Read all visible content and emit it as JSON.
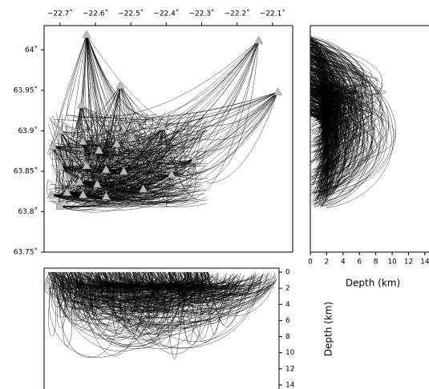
{
  "chart_data": [
    {
      "type": "scatter",
      "xlim": [
        -22.745,
        -22.043
      ],
      "ylim": [
        63.75,
        64.03
      ],
      "xticks": [
        {
          "value": -22.7,
          "label": "−22.7˚"
        },
        {
          "value": -22.6,
          "label": "−22.6˚"
        },
        {
          "value": -22.5,
          "label": "−22.5˚"
        },
        {
          "value": -22.4,
          "label": "−22.4˚"
        },
        {
          "value": -22.3,
          "label": "−22.3˚"
        },
        {
          "value": -22.2,
          "label": "−22.2˚"
        },
        {
          "value": -22.1,
          "label": "−22.1˚"
        }
      ],
      "yticks": [
        {
          "value": 63.75,
          "label": "63.75˚"
        },
        {
          "value": 63.8,
          "label": "63.8˚"
        },
        {
          "value": 63.85,
          "label": "63.85˚"
        },
        {
          "value": 63.9,
          "label": "63.9˚"
        },
        {
          "value": 63.95,
          "label": "63.95˚"
        },
        {
          "value": 64,
          "label": "64˚"
        }
      ],
      "color": "#bdbdbd",
      "x": [
        -22.625,
        -22.139,
        -22.085,
        -22.53,
        -22.64,
        -22.7,
        -22.41,
        -22.72,
        -22.635,
        -22.59,
        -22.54,
        -22.32,
        -22.385,
        -22.7,
        -22.625,
        -22.57,
        -22.52,
        -22.645,
        -22.595,
        -22.465,
        -22.725,
        -22.68,
        -22.635,
        -22.57,
        -22.7
      ],
      "y": [
        64.019,
        64.012,
        63.948,
        63.956,
        63.932,
        63.9,
        63.905,
        63.881,
        63.887,
        63.876,
        63.884,
        63.864,
        63.846,
        63.856,
        63.857,
        63.852,
        63.85,
        63.837,
        63.834,
        63.828,
        63.821,
        63.824,
        63.821,
        63.819,
        63.807
      ]
    },
    {
      "type": "section",
      "xlim": [
        0,
        14.5
      ],
      "xticks": [
        0,
        2,
        4,
        6,
        8,
        10,
        12,
        14
      ],
      "xlabel": "Depth (km)"
    },
    {
      "type": "section",
      "ylim": [
        0,
        14.5
      ],
      "yticks": [
        0,
        2,
        4,
        6,
        8,
        10,
        12,
        14
      ],
      "ylabel": "Depth (km)"
    }
  ]
}
